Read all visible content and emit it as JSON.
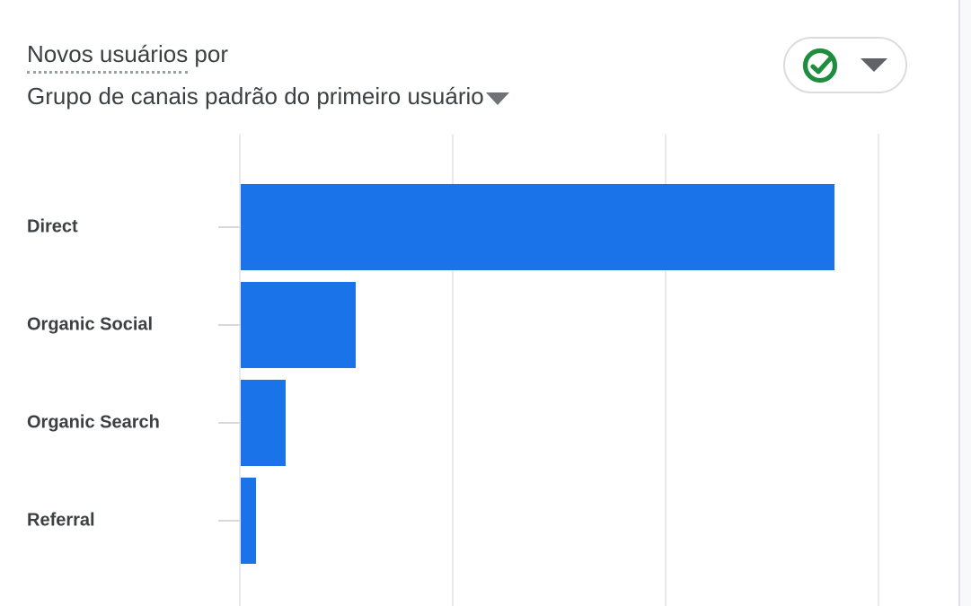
{
  "header": {
    "metric": "Novos usuários",
    "metric_suffix": " por",
    "dimension": "Grupo de canais padrão do primeiro usuário"
  },
  "quality_button": {
    "status_icon": "check-circle",
    "status_color": "#1e8e3e"
  },
  "chart_data": {
    "type": "bar",
    "orientation": "horizontal",
    "title": "Novos usuários por Grupo de canais padrão do primeiro usuário",
    "categories": [
      "Direct",
      "Organic Social",
      "Organic Search",
      "Referral"
    ],
    "values": [
      2.79,
      0.54,
      0.21,
      0.07
    ],
    "value_note": "x-axis tick labels are cropped out of view; values estimated in gridline units",
    "xlabel": "",
    "ylabel": "",
    "xlim": [
      0,
      3.38
    ],
    "gridlines_at": [
      0,
      1,
      2,
      3
    ],
    "grid": true,
    "legend": false,
    "bar_color": "#1a73e8"
  },
  "colors": {
    "bar": "#1a73e8",
    "text": "#3c4043",
    "gridline": "#e9eaee",
    "pill_border": "#dadce0",
    "check_green": "#1e8e3e",
    "caret_gray": "#5f6368"
  }
}
